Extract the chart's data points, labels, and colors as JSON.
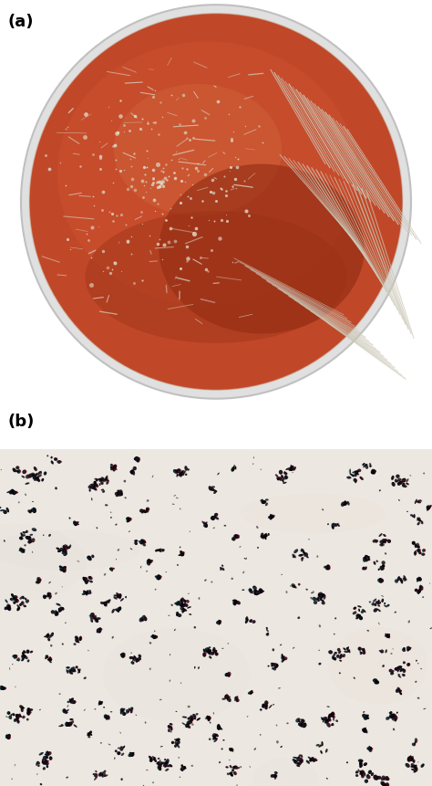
{
  "figure_width": 4.74,
  "figure_height": 8.62,
  "dpi": 100,
  "background_color": "#ffffff",
  "label_a": "(a)",
  "label_b": "(b)",
  "label_fontsize": 13,
  "label_fontweight": "bold",
  "panel_a": {
    "agar_color_main": "#c04828",
    "agar_color_light": "#d06038",
    "agar_color_dark": "#8a2810",
    "rim_color": "#e8e8e8",
    "rim_edge": "#c8c8c8",
    "colony_color": "#e8e2d0",
    "streak_color": "#d8d0bc"
  },
  "panel_b": {
    "bg_color": "#ede8e2",
    "bacteria_color": "#080510"
  }
}
